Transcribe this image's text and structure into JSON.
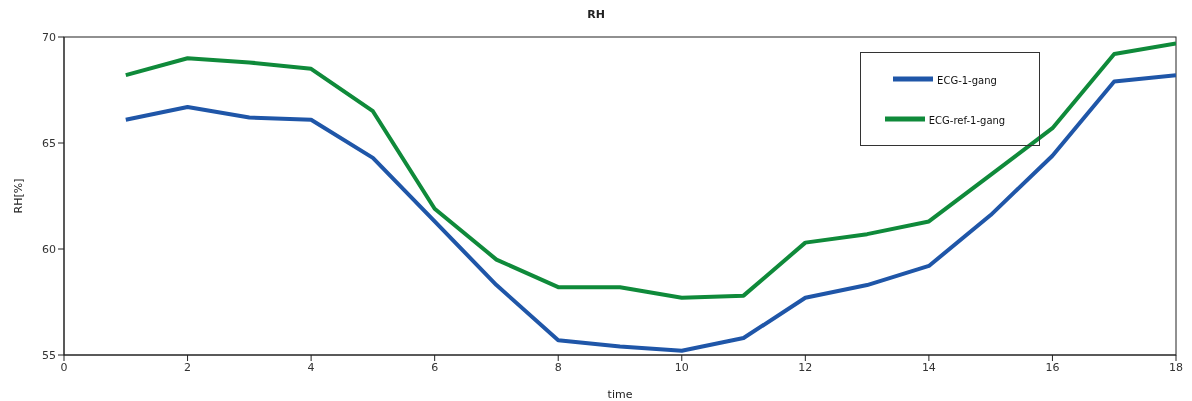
{
  "chart_data": {
    "type": "line",
    "title": "RH",
    "xlabel": "time",
    "ylabel": "RH[%]",
    "x": [
      1,
      2,
      3,
      4,
      5,
      6,
      7,
      8,
      9,
      10,
      11,
      12,
      13,
      14,
      15,
      16,
      17,
      18
    ],
    "series": [
      {
        "name": "ECG-1-gang",
        "color": "#1f56a8",
        "values": [
          66.1,
          66.7,
          66.2,
          66.1,
          64.3,
          61.3,
          58.3,
          55.7,
          55.4,
          55.2,
          55.8,
          57.7,
          58.3,
          59.2,
          61.6,
          64.4,
          67.9,
          68.2
        ]
      },
      {
        "name": "ECG-ref-1-gang",
        "color": "#0f8a3a",
        "values": [
          68.2,
          69.0,
          68.8,
          68.5,
          66.5,
          61.9,
          59.5,
          58.2,
          58.2,
          57.7,
          57.8,
          60.3,
          60.7,
          61.3,
          63.5,
          65.7,
          69.2,
          69.7
        ]
      }
    ],
    "xlim": [
      0,
      18
    ],
    "xticks": [
      0,
      2,
      4,
      6,
      8,
      10,
      12,
      14,
      16,
      18
    ],
    "ylim": [
      55,
      70
    ],
    "yticks": [
      55,
      60,
      65,
      70
    ],
    "grid": false,
    "legend": "top right",
    "marker": "none",
    "line_style": "solid"
  }
}
